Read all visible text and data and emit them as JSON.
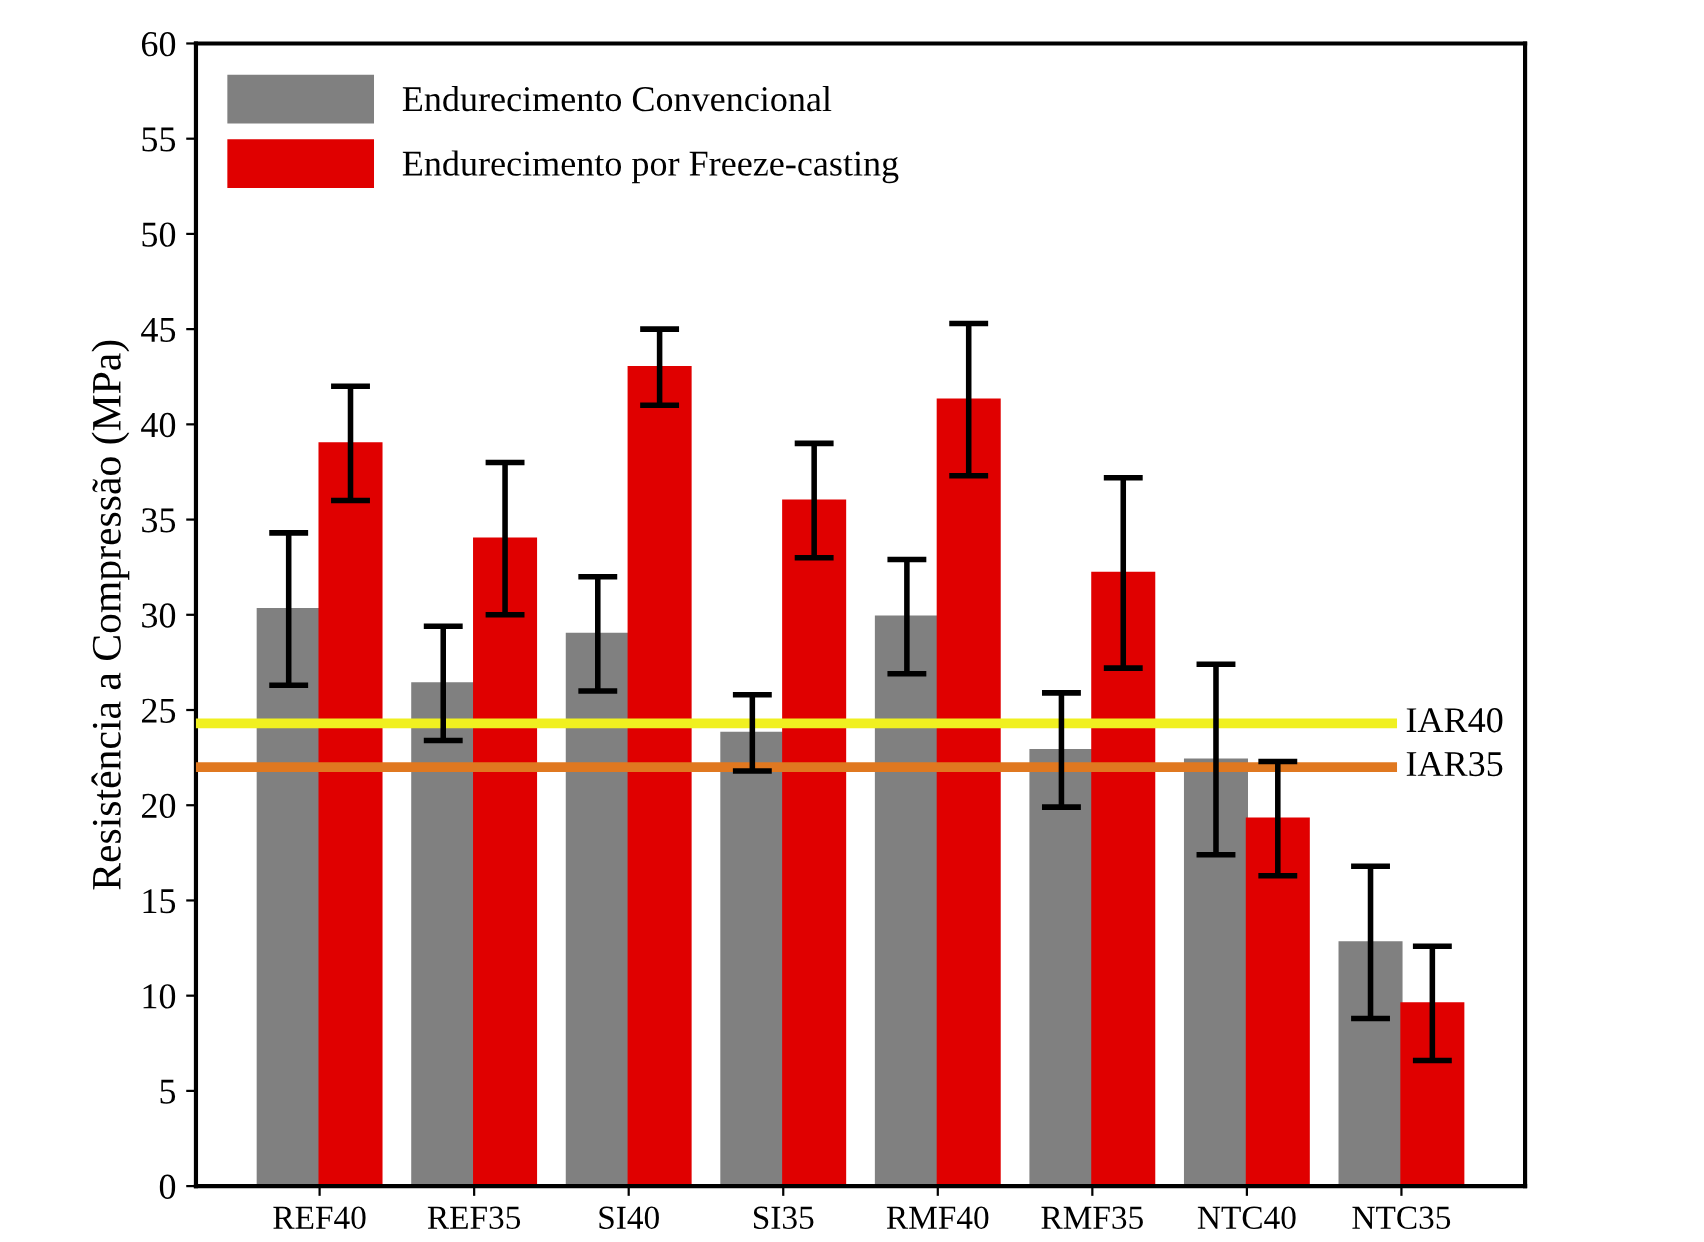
{
  "chart_data": {
    "type": "bar",
    "ylabel": "Resistência a Compressão (MPa)",
    "categories": [
      "REF40",
      "REF35",
      "SI40",
      "SI35",
      "RMF40",
      "RMF35",
      "NTC40",
      "NTC35"
    ],
    "series": [
      {
        "name": "Endurecimento Convencional",
        "color": "#808080",
        "values": [
          30.3,
          26.4,
          29,
          23.8,
          29.9,
          22.9,
          22.4,
          12.8
        ],
        "errors": [
          4,
          3,
          3,
          2,
          3,
          3,
          5,
          4
        ]
      },
      {
        "name": "Endurecimento por Freeze-casting",
        "color": "#e00000",
        "values": [
          39,
          34,
          43,
          36,
          41.3,
          32.2,
          19.3,
          9.6
        ],
        "errors": [
          3,
          4,
          2,
          3,
          4,
          5,
          3,
          3
        ]
      }
    ],
    "ylim": [
      0,
      60
    ],
    "yticks": [
      0,
      5,
      10,
      15,
      20,
      25,
      30,
      35,
      40,
      45,
      50,
      55,
      60
    ],
    "ref_lines": [
      {
        "axis": "y",
        "value": 24.3,
        "label": "IAR40",
        "color": "#f0f020"
      },
      {
        "axis": "y",
        "value": 22,
        "label": "IAR35",
        "color": "#e07820"
      }
    ],
    "legend": "top left",
    "grid": false
  }
}
